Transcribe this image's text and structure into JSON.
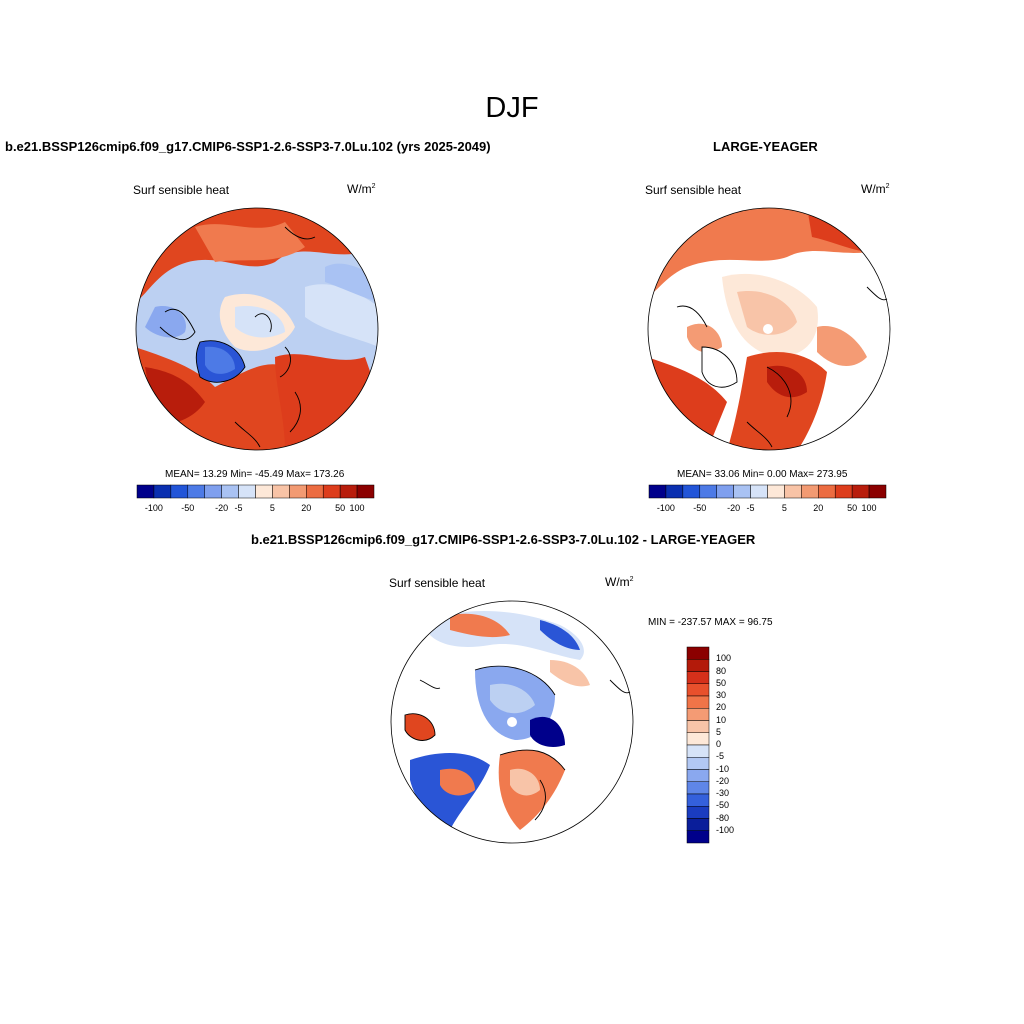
{
  "figure": {
    "title": "DJF"
  },
  "panels": {
    "left": {
      "title": "b.e21.BSSP126cmip6.f09_g17.CMIP6-SSP1-2.6-SSP3-7.0Lu.102 (yrs 2025-2049)",
      "variable": "Surf sensible heat",
      "units_base": "W/m",
      "units_exp": "2",
      "stats": "MEAN=  13.29  Min= -45.49  Max= 173.26"
    },
    "right": {
      "title": "LARGE-YEAGER",
      "variable": "Surf sensible heat",
      "units_base": "W/m",
      "units_exp": "2",
      "stats": "MEAN=  33.06  Min=   0.00  Max= 273.95"
    },
    "diff": {
      "title": "b.e21.BSSP126cmip6.f09_g17.CMIP6-SSP1-2.6-SSP3-7.0Lu.102 - LARGE-YEAGER",
      "variable": "Surf sensible heat",
      "units_base": "W/m",
      "units_exp": "2",
      "stats": "MIN = -237.57 MAX =  96.75"
    }
  },
  "colorbars": {
    "horizontal": {
      "labels": [
        "-100",
        "-50",
        "-20",
        "-5",
        "5",
        "20",
        "50",
        "100"
      ],
      "colors": [
        "#00008b",
        "#0a2fb0",
        "#2255d8",
        "#4d7ae6",
        "#7f9fee",
        "#a9c2f3",
        "#d6e3f8",
        "#fde8d8",
        "#f8c3a6",
        "#f29a72",
        "#ec6c41",
        "#dd3d1c",
        "#b81d0c",
        "#8b0000"
      ]
    },
    "vertical": {
      "labels": [
        "100",
        "80",
        "50",
        "30",
        "20",
        "10",
        "5",
        "0",
        "-5",
        "-10",
        "-20",
        "-30",
        "-50",
        "-80",
        "-100"
      ],
      "colors": [
        "#8b0000",
        "#b31a0a",
        "#d5301a",
        "#e8502c",
        "#f07448",
        "#f49b74",
        "#f8c4a8",
        "#fde8d8",
        "#d6e3f8",
        "#b2c8f4",
        "#8aa8ef",
        "#5f86e8",
        "#3460dc",
        "#1a3cc0",
        "#0a1e9a",
        "#00008b"
      ]
    }
  },
  "map_colors": {
    "strong_warm": "#e0461f",
    "warm": "#f07a4e",
    "light_warm": "#f8c4a8",
    "pale": "#fde8d8",
    "light_cool": "#bcd0f2",
    "cool": "#8aa8ef",
    "strong_cool": "#2a55d6",
    "land_line": "#000000"
  }
}
